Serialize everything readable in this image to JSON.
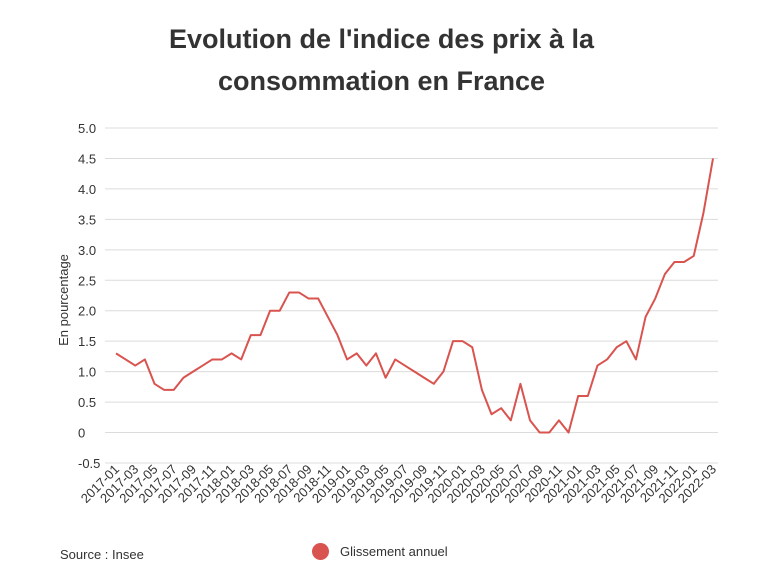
{
  "chart_data": {
    "type": "line",
    "title_lines": [
      "Evolution de l'indice des prix à la",
      "consommation en France"
    ],
    "ylabel": "En pourcentage",
    "xlabel": "",
    "ylim": [
      -0.5,
      5.0
    ],
    "yticks": [
      "-0.5",
      "0",
      "0.5",
      "1.0",
      "1.5",
      "2.0",
      "2.5",
      "3.0",
      "3.5",
      "4.0",
      "4.5",
      "5.0"
    ],
    "ytick_values": [
      -0.5,
      0,
      0.5,
      1.0,
      1.5,
      2.0,
      2.5,
      3.0,
      3.5,
      4.0,
      4.5,
      5.0
    ],
    "grid": true,
    "legend_position": "bottom",
    "x": [
      "2017-01",
      "2017-02",
      "2017-03",
      "2017-04",
      "2017-05",
      "2017-06",
      "2017-07",
      "2017-08",
      "2017-09",
      "2017-10",
      "2017-11",
      "2017-12",
      "2018-01",
      "2018-02",
      "2018-03",
      "2018-04",
      "2018-05",
      "2018-06",
      "2018-07",
      "2018-08",
      "2018-09",
      "2018-10",
      "2018-11",
      "2018-12",
      "2019-01",
      "2019-02",
      "2019-03",
      "2019-04",
      "2019-05",
      "2019-06",
      "2019-07",
      "2019-08",
      "2019-09",
      "2019-10",
      "2019-11",
      "2019-12",
      "2020-01",
      "2020-02",
      "2020-03",
      "2020-04",
      "2020-05",
      "2020-06",
      "2020-07",
      "2020-08",
      "2020-09",
      "2020-10",
      "2020-11",
      "2020-12",
      "2021-01",
      "2021-02",
      "2021-03",
      "2021-04",
      "2021-05",
      "2021-06",
      "2021-07",
      "2021-08",
      "2021-09",
      "2021-10",
      "2021-11",
      "2021-12",
      "2022-01",
      "2022-02",
      "2022-03"
    ],
    "xtick_labels": [
      "2017-01",
      "2017-03",
      "2017-05",
      "2017-07",
      "2017-09",
      "2017-11",
      "2018-01",
      "2018-03",
      "2018-05",
      "2018-07",
      "2018-09",
      "2018-11",
      "2019-01",
      "2019-03",
      "2019-05",
      "2019-07",
      "2019-09",
      "2019-11",
      "2020-01",
      "2020-03",
      "2020-05",
      "2020-07",
      "2020-09",
      "2020-11",
      "2021-01",
      "2021-03",
      "2021-05",
      "2021-07",
      "2021-09",
      "2021-11",
      "2022-01",
      "2022-03"
    ],
    "series": [
      {
        "name": "Glissement annuel",
        "color": "#d9534f",
        "values": [
          1.3,
          1.2,
          1.1,
          1.2,
          0.8,
          0.7,
          0.7,
          0.9,
          1.0,
          1.1,
          1.2,
          1.2,
          1.3,
          1.2,
          1.6,
          1.6,
          2.0,
          2.0,
          2.3,
          2.3,
          2.2,
          2.2,
          1.9,
          1.6,
          1.2,
          1.3,
          1.1,
          1.3,
          0.9,
          1.2,
          1.1,
          1.0,
          0.9,
          0.8,
          1.0,
          1.5,
          1.5,
          1.4,
          0.7,
          0.3,
          0.4,
          0.2,
          0.8,
          0.2,
          0.0,
          0.0,
          0.2,
          0.0,
          0.6,
          0.6,
          1.1,
          1.2,
          1.4,
          1.5,
          1.2,
          1.9,
          2.2,
          2.6,
          2.8,
          2.8,
          2.9,
          3.6,
          4.5
        ]
      }
    ],
    "source_note": "Source : Insee"
  }
}
